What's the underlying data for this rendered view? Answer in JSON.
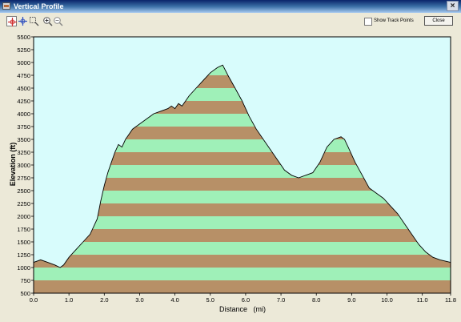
{
  "window": {
    "title": "Vertical Profile",
    "close_glyph": "×"
  },
  "toolbar": {
    "tools": [
      {
        "name": "pan-crosshair-icon",
        "active": true
      },
      {
        "name": "select-crosshair-icon",
        "active": false
      },
      {
        "name": "zoom-rect-icon",
        "active": false
      },
      {
        "name": "zoom-in-icon",
        "active": false
      },
      {
        "name": "zoom-out-icon",
        "active": false
      }
    ],
    "show_track_points_label": "Show Track Points",
    "show_track_points_checked": false,
    "close_label": "Close"
  },
  "colors": {
    "plot_background": "#d8fcfc",
    "band_green": "#9ff0b8",
    "band_brown": "#b79067",
    "outline": "#000000"
  },
  "chart_data": {
    "type": "area",
    "xlabel": "Distance   (mi)",
    "ylabel": "Elevation (ft)",
    "xlim": [
      0,
      11.8
    ],
    "ylim": [
      500,
      5500
    ],
    "x_ticks": [
      "0.0",
      "1.0",
      "2.0",
      "3.0",
      "4.0",
      "5.0",
      "6.0",
      "7.0",
      "8.0",
      "9.0",
      "10.0",
      "11.0",
      "11.8"
    ],
    "y_ticks": [
      "500",
      "750",
      "1000",
      "1250",
      "1500",
      "1750",
      "2000",
      "2250",
      "2500",
      "2750",
      "3000",
      "3250",
      "3500",
      "3750",
      "4000",
      "4250",
      "4500",
      "4750",
      "5000",
      "5250",
      "5500"
    ],
    "band_step": 250,
    "grid": false,
    "series": [
      {
        "x": [
          0.0,
          0.2,
          0.4,
          0.6,
          0.75,
          0.85,
          1.0,
          1.2,
          1.4,
          1.6,
          1.8,
          1.9,
          2.0,
          2.1,
          2.2,
          2.3,
          2.4,
          2.5,
          2.6,
          2.7,
          2.8,
          2.9,
          3.0,
          3.2,
          3.4,
          3.6,
          3.8,
          3.9,
          4.0,
          4.1,
          4.2,
          4.3,
          4.4,
          4.6,
          4.8,
          5.0,
          5.2,
          5.35,
          5.5,
          5.7,
          5.9,
          6.1,
          6.3,
          6.5,
          6.7,
          6.9,
          7.1,
          7.3,
          7.5,
          7.7,
          7.9,
          8.1,
          8.3,
          8.5,
          8.7,
          8.8,
          8.9,
          9.1,
          9.3,
          9.5,
          9.7,
          9.9,
          10.1,
          10.3,
          10.5,
          10.7,
          10.9,
          11.1,
          11.3,
          11.5,
          11.8
        ],
        "y": [
          1100,
          1150,
          1100,
          1050,
          1000,
          1050,
          1200,
          1350,
          1500,
          1650,
          1950,
          2300,
          2600,
          2850,
          3050,
          3250,
          3400,
          3350,
          3500,
          3600,
          3700,
          3750,
          3800,
          3900,
          4000,
          4050,
          4100,
          4150,
          4100,
          4200,
          4150,
          4250,
          4350,
          4500,
          4650,
          4800,
          4900,
          4950,
          4750,
          4500,
          4250,
          3950,
          3700,
          3500,
          3300,
          3100,
          2900,
          2800,
          2750,
          2800,
          2850,
          3050,
          3350,
          3500,
          3550,
          3500,
          3350,
          3050,
          2800,
          2550,
          2450,
          2350,
          2200,
          2050,
          1850,
          1650,
          1450,
          1300,
          1200,
          1150,
          1100
        ]
      }
    ]
  }
}
